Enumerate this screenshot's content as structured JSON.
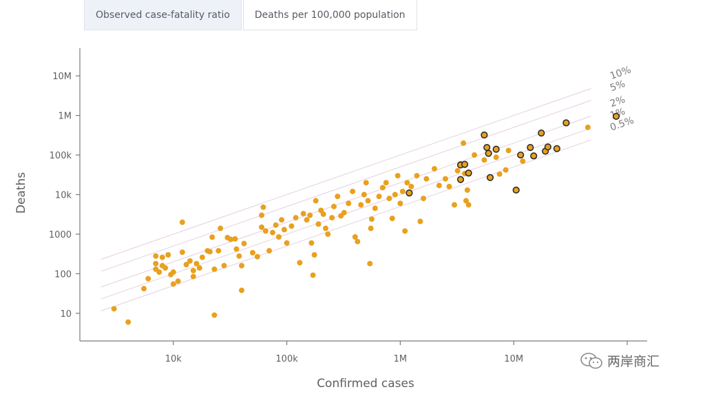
{
  "tabs": [
    {
      "label": "Observed case-fatality ratio",
      "active": true
    },
    {
      "label": "Deaths per 100,000 population",
      "active": false
    }
  ],
  "watermark": {
    "text": "两岸商汇"
  },
  "colors": {
    "point": "#e8a11f",
    "highlight_stroke": "#2b2b2b",
    "reference_line": "#e4cfe0",
    "axis": "#7a7a7a",
    "text": "#5e5e5e"
  },
  "chart_data": {
    "type": "scatter",
    "xscale": "log",
    "yscale": "log",
    "xlabel": "Confirmed cases",
    "ylabel": "Deaths",
    "xlim": [
      1500,
      150000000
    ],
    "ylim": [
      2,
      50000000
    ],
    "xticks": [
      {
        "value": 10000,
        "label": "10k"
      },
      {
        "value": 100000,
        "label": "100k"
      },
      {
        "value": 1000000,
        "label": "1M"
      },
      {
        "value": 10000000,
        "label": "10M"
      },
      {
        "value": 100000000,
        "label": "..."
      }
    ],
    "yticks": [
      {
        "value": 10,
        "label": "10"
      },
      {
        "value": 100,
        "label": "100"
      },
      {
        "value": 1000,
        "label": "1000"
      },
      {
        "value": 10000,
        "label": "10k"
      },
      {
        "value": 100000,
        "label": "100k"
      },
      {
        "value": 1000000,
        "label": "1M"
      },
      {
        "value": 10000000,
        "label": "10M"
      }
    ],
    "reference_lines": [
      {
        "ratio": 0.1,
        "label": "10%"
      },
      {
        "ratio": 0.05,
        "label": "5%"
      },
      {
        "ratio": 0.02,
        "label": "2%"
      },
      {
        "ratio": 0.01,
        "label": "1%"
      },
      {
        "ratio": 0.005,
        "label": "0.5%"
      }
    ],
    "series": [
      {
        "name": "countries",
        "points": [
          [
            3000,
            13
          ],
          [
            4000,
            6
          ],
          [
            5500,
            42
          ],
          [
            6000,
            75
          ],
          [
            7000,
            130
          ],
          [
            7000,
            180
          ],
          [
            7000,
            280
          ],
          [
            7500,
            110
          ],
          [
            8000,
            160
          ],
          [
            8000,
            260
          ],
          [
            8500,
            140
          ],
          [
            9000,
            300
          ],
          [
            9500,
            95
          ],
          [
            10000,
            110
          ],
          [
            10000,
            55
          ],
          [
            11000,
            65
          ],
          [
            12000,
            2000
          ],
          [
            12000,
            350
          ],
          [
            13000,
            170
          ],
          [
            14000,
            210
          ],
          [
            15000,
            120
          ],
          [
            15000,
            85
          ],
          [
            16000,
            180
          ],
          [
            17000,
            140
          ],
          [
            18000,
            260
          ],
          [
            20000,
            380
          ],
          [
            21000,
            360
          ],
          [
            22000,
            840
          ],
          [
            23000,
            9
          ],
          [
            23000,
            130
          ],
          [
            25000,
            380
          ],
          [
            26000,
            1400
          ],
          [
            28000,
            160
          ],
          [
            30000,
            820
          ],
          [
            32000,
            740
          ],
          [
            35000,
            760
          ],
          [
            36000,
            420
          ],
          [
            38000,
            280
          ],
          [
            40000,
            38
          ],
          [
            40000,
            160
          ],
          [
            42000,
            580
          ],
          [
            50000,
            340
          ],
          [
            55000,
            270
          ],
          [
            60000,
            3000
          ],
          [
            60000,
            1500
          ],
          [
            62000,
            4800
          ],
          [
            65000,
            1200
          ],
          [
            70000,
            380
          ],
          [
            75000,
            1100
          ],
          [
            80000,
            1700
          ],
          [
            85000,
            850
          ],
          [
            90000,
            2300
          ],
          [
            95000,
            1300
          ],
          [
            100000,
            600
          ],
          [
            110000,
            1600
          ],
          [
            120000,
            2600
          ],
          [
            130000,
            190
          ],
          [
            140000,
            3300
          ],
          [
            150000,
            2300
          ],
          [
            160000,
            3000
          ],
          [
            165000,
            600
          ],
          [
            170000,
            92
          ],
          [
            175000,
            300
          ],
          [
            180000,
            7000
          ],
          [
            190000,
            1800
          ],
          [
            200000,
            4000
          ],
          [
            210000,
            3200
          ],
          [
            220000,
            1400
          ],
          [
            230000,
            1000
          ],
          [
            250000,
            2600
          ],
          [
            260000,
            5000
          ],
          [
            280000,
            9000
          ],
          [
            300000,
            2900
          ],
          [
            320000,
            3500
          ],
          [
            350000,
            6000
          ],
          [
            380000,
            12000
          ],
          [
            400000,
            850
          ],
          [
            420000,
            650
          ],
          [
            450000,
            5500
          ],
          [
            480000,
            10000
          ],
          [
            500000,
            20000
          ],
          [
            520000,
            7000
          ],
          [
            540000,
            180
          ],
          [
            550000,
            1400
          ],
          [
            560000,
            2400
          ],
          [
            600000,
            4500
          ],
          [
            650000,
            9000
          ],
          [
            700000,
            15000
          ],
          [
            750000,
            20000
          ],
          [
            800000,
            8000
          ],
          [
            850000,
            2500
          ],
          [
            900000,
            10000
          ],
          [
            950000,
            30000
          ],
          [
            1000000,
            6000
          ],
          [
            1050000,
            12000
          ],
          [
            1100000,
            1200
          ],
          [
            1150000,
            20000
          ],
          [
            1200000,
            11000
          ],
          [
            1250000,
            16000
          ],
          [
            1400000,
            30000
          ],
          [
            1500000,
            2100
          ],
          [
            1600000,
            8000
          ],
          [
            1700000,
            25000
          ],
          [
            2000000,
            45000
          ],
          [
            2200000,
            17000
          ],
          [
            2500000,
            25000
          ],
          [
            2700000,
            16000
          ],
          [
            3000000,
            5500
          ],
          [
            3200000,
            40000
          ],
          [
            3400000,
            60000
          ],
          [
            3600000,
            200000
          ],
          [
            3700000,
            34000
          ],
          [
            3800000,
            7000
          ],
          [
            3900000,
            13000
          ],
          [
            4000000,
            5500
          ],
          [
            4500000,
            100000
          ],
          [
            5500000,
            75000
          ],
          [
            7000000,
            88000
          ],
          [
            7500000,
            33000
          ],
          [
            8500000,
            42000
          ],
          [
            9000000,
            130000
          ],
          [
            12000000,
            70000
          ],
          [
            45000000,
            500000
          ]
        ]
      },
      {
        "name": "highlighted",
        "highlighted": true,
        "points": [
          [
            1200000,
            11000
          ],
          [
            3400000,
            24000
          ],
          [
            3400000,
            56000
          ],
          [
            3700000,
            58000
          ],
          [
            4000000,
            35000
          ],
          [
            5500000,
            320000
          ],
          [
            5800000,
            155000
          ],
          [
            6000000,
            110000
          ],
          [
            6200000,
            27000
          ],
          [
            7000000,
            140000
          ],
          [
            10500000,
            13000
          ],
          [
            11500000,
            100000
          ],
          [
            14000000,
            155000
          ],
          [
            15000000,
            95000
          ],
          [
            17500000,
            360000
          ],
          [
            19000000,
            125000
          ],
          [
            20000000,
            160000
          ],
          [
            24000000,
            145000
          ],
          [
            29000000,
            650000
          ],
          [
            80000000,
            950000
          ]
        ]
      }
    ]
  }
}
